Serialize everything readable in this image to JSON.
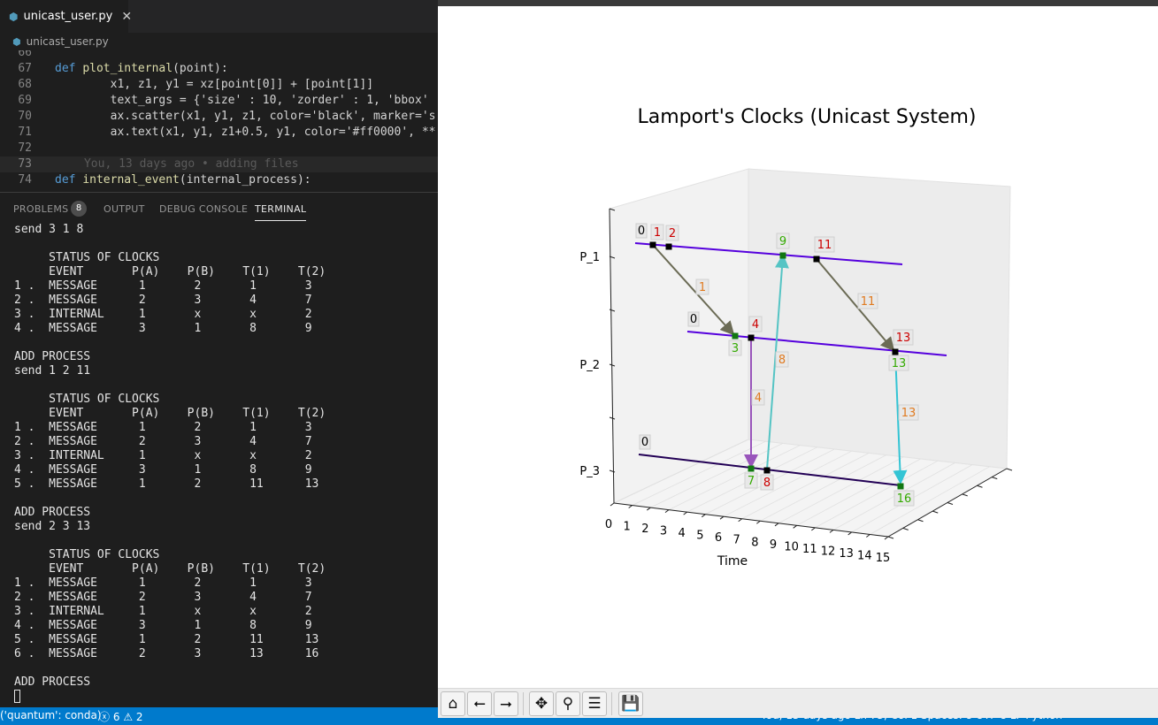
{
  "editor": {
    "tab_title": "unicast_user.py",
    "breadcrumb": "unicast_user.py",
    "tab_icon": "python-file-icon",
    "lines": [
      {
        "n": "66",
        "html": ""
      },
      {
        "n": "67",
        "kind": "def",
        "name": "plot_internal",
        "args": "point"
      },
      {
        "n": "68",
        "text": "        x1, z1, y1 = xz[point[0]] + [point[1]]"
      },
      {
        "n": "69",
        "text": "        text_args = {'size' : 10, 'zorder' : 1, 'bbox'"
      },
      {
        "n": "70",
        "text": "        ax.scatter(x1, y1, z1, color='black', marker='s"
      },
      {
        "n": "71",
        "text": "        ax.text(x1, y1, z1+0.5, y1, color='#ff0000', **"
      },
      {
        "n": "72",
        "text": ""
      },
      {
        "n": "73",
        "blame": "      You, 13 days ago • adding files"
      },
      {
        "n": "74",
        "kind": "def",
        "name": "internal_event",
        "args": "internal_process"
      }
    ]
  },
  "panel": {
    "tabs": [
      "PROBLEMS",
      "OUTPUT",
      "DEBUG CONSOLE",
      "TERMINAL"
    ],
    "problems_count": "8"
  },
  "terminal": {
    "lines": [
      "send 3 1 8",
      "",
      "     STATUS OF CLOCKS",
      "     EVENT       P(A)    P(B)    T(1)    T(2)",
      "1 .  MESSAGE      1       2       1       3",
      "2 .  MESSAGE      2       3       4       7",
      "3 .  INTERNAL     1       x       x       2",
      "4 .  MESSAGE      3       1       8       9",
      "",
      "ADD PROCESS",
      "send 1 2 11",
      "",
      "     STATUS OF CLOCKS",
      "     EVENT       P(A)    P(B)    T(1)    T(2)",
      "1 .  MESSAGE      1       2       1       3",
      "2 .  MESSAGE      2       3       4       7",
      "3 .  INTERNAL     1       x       x       2",
      "4 .  MESSAGE      3       1       8       9",
      "5 .  MESSAGE      1       2       11      13",
      "",
      "ADD PROCESS",
      "send 2 3 13",
      "",
      "     STATUS OF CLOCKS",
      "     EVENT       P(A)    P(B)    T(1)    T(2)",
      "1 .  MESSAGE      1       2       1       3",
      "2 .  MESSAGE      2       3       4       7",
      "3 .  INTERNAL     1       x       x       2",
      "4 .  MESSAGE      3       1       8       9",
      "5 .  MESSAGE      1       2       11      13",
      "6 .  MESSAGE      2       3       13      16",
      "",
      "ADD PROCESS"
    ]
  },
  "statusbar": {
    "env": "('quantum': conda)",
    "errors": "6",
    "warnings": "2",
    "right": "You, 13 days ago    Ln 73, Col 1    Spaces: 8    UTF-8    LF    Python"
  },
  "figure": {
    "title": "Lamport's Clocks (Unicast System)",
    "toolbar": [
      "home-icon",
      "back-icon",
      "forward-icon",
      "pan-icon",
      "zoom-icon",
      "configure-icon",
      "save-icon"
    ]
  },
  "chart_data": {
    "type": "scatter",
    "title": "Lamport's Clocks (Unicast System)",
    "xlabel": "Time",
    "ylabel": "",
    "x_ticks": [
      "0",
      "1",
      "2",
      "3",
      "4",
      "5",
      "6",
      "7",
      "8",
      "9",
      "10",
      "11",
      "12",
      "13",
      "14",
      "15"
    ],
    "y_ticks": [
      "P_1",
      "P_2",
      "P_3"
    ],
    "xlim": [
      0,
      15
    ],
    "grid": true,
    "processes": [
      {
        "name": "P_1",
        "color": "#5500dd",
        "start_label": "0"
      },
      {
        "name": "P_2",
        "color": "#5500dd",
        "start_label": "0"
      },
      {
        "name": "P_3",
        "color": "#220055",
        "start_label": "0"
      }
    ],
    "events": [
      {
        "process": "P_1",
        "label": "1",
        "kind": "send"
      },
      {
        "process": "P_1",
        "label": "2",
        "kind": "internal"
      },
      {
        "process": "P_1",
        "label": "9",
        "kind": "receive"
      },
      {
        "process": "P_1",
        "label": "11",
        "kind": "send"
      },
      {
        "process": "P_2",
        "label": "3",
        "kind": "receive"
      },
      {
        "process": "P_2",
        "label": "4",
        "kind": "send"
      },
      {
        "process": "P_2",
        "label": "13",
        "kind": "receive"
      },
      {
        "process": "P_2",
        "label": "13",
        "kind": "send"
      },
      {
        "process": "P_3",
        "label": "7",
        "kind": "receive"
      },
      {
        "process": "P_3",
        "label": "8",
        "kind": "send"
      },
      {
        "process": "P_3",
        "label": "16",
        "kind": "receive"
      }
    ],
    "messages": [
      {
        "from": "P_1",
        "to": "P_2",
        "label": "1",
        "color": "#6b6b55"
      },
      {
        "from": "P_2",
        "to": "P_3",
        "label": "4",
        "color": "#9955bb"
      },
      {
        "from": "P_3",
        "to": "P_1",
        "label": "8",
        "color": "#55c4c4"
      },
      {
        "from": "P_1",
        "to": "P_2",
        "label": "11",
        "color": "#6b6b55"
      },
      {
        "from": "P_2",
        "to": "P_3",
        "label": "13",
        "color": "#33c4d4"
      }
    ]
  }
}
